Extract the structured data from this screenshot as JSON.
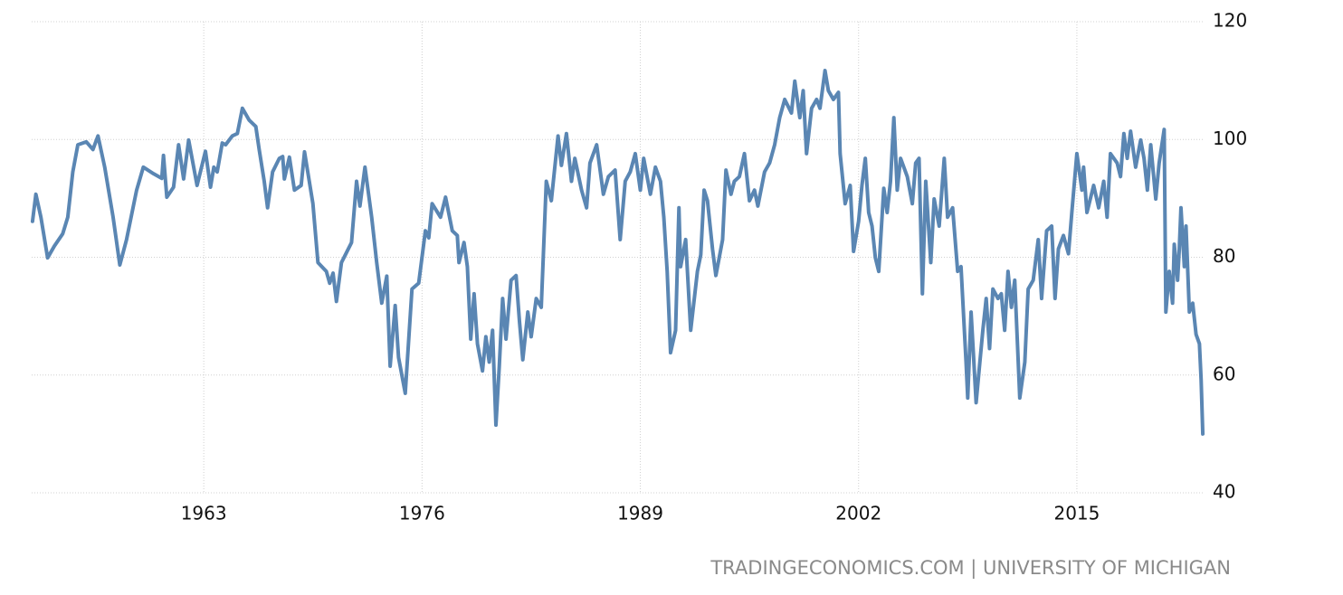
{
  "chart_data": {
    "type": "line",
    "source": "TRADINGECONOMICS.COM | UNIVERSITY OF MICHIGAN",
    "color": "#5a86b3",
    "grid": true,
    "xlim": [
      1952.75,
      2022.55
    ],
    "xticks": [
      1963,
      1976,
      1989,
      2002,
      2015
    ],
    "ylim": [
      40,
      120
    ],
    "yticks": [
      40,
      60,
      80,
      100,
      120
    ],
    "x": [
      1952.8,
      1953.0,
      1953.3,
      1953.7,
      1954.1,
      1954.6,
      1954.9,
      1955.2,
      1955.5,
      1956.0,
      1956.4,
      1956.7,
      1957.1,
      1957.6,
      1958.0,
      1958.4,
      1959.0,
      1959.4,
      1960.0,
      1960.5,
      1960.6,
      1960.8,
      1961.2,
      1961.5,
      1961.8,
      1962.1,
      1962.6,
      1963.1,
      1963.4,
      1963.6,
      1963.8,
      1964.1,
      1964.3,
      1964.7,
      1965.0,
      1965.3,
      1965.7,
      1966.1,
      1966.3,
      1966.6,
      1966.8,
      1967.1,
      1967.5,
      1967.7,
      1967.8,
      1968.1,
      1968.4,
      1968.8,
      1969.0,
      1969.5,
      1969.8,
      1970.3,
      1970.5,
      1970.7,
      1970.9,
      1971.2,
      1971.8,
      1972.1,
      1972.3,
      1972.6,
      1973.0,
      1973.3,
      1973.6,
      1973.9,
      1974.1,
      1974.4,
      1974.6,
      1975.0,
      1975.4,
      1975.8,
      1976.2,
      1976.4,
      1976.6,
      1977.1,
      1977.4,
      1977.8,
      1978.1,
      1978.2,
      1978.5,
      1978.7,
      1978.9,
      1979.1,
      1979.3,
      1979.6,
      1979.8,
      1980.0,
      1980.2,
      1980.4,
      1980.6,
      1980.8,
      1981.0,
      1981.3,
      1981.6,
      1981.8,
      1982.0,
      1982.3,
      1982.5,
      1982.8,
      1983.1,
      1983.4,
      1983.7,
      1984.1,
      1984.3,
      1984.6,
      1984.9,
      1985.1,
      1985.5,
      1985.8,
      1986.0,
      1986.4,
      1986.8,
      1987.1,
      1987.5,
      1987.8,
      1988.1,
      1988.4,
      1988.7,
      1989.0,
      1989.2,
      1989.6,
      1989.9,
      1990.2,
      1990.4,
      1990.6,
      1990.8,
      1991.1,
      1991.3,
      1991.4,
      1991.7,
      1992.0,
      1992.4,
      1992.6,
      1992.8,
      1993.0,
      1993.3,
      1993.5,
      1993.9,
      1994.1,
      1994.4,
      1994.6,
      1994.9,
      1995.2,
      1995.5,
      1995.8,
      1996.0,
      1996.4,
      1996.7,
      1997.0,
      1997.3,
      1997.6,
      1998.0,
      1998.2,
      1998.5,
      1998.7,
      1998.9,
      1999.2,
      1999.5,
      1999.7,
      2000.0,
      2000.2,
      2000.5,
      2000.8,
      2000.9,
      2001.2,
      2001.5,
      2001.7,
      2002.0,
      2002.2,
      2002.4,
      2002.6,
      2002.8,
      2003.0,
      2003.2,
      2003.5,
      2003.7,
      2003.9,
      2004.1,
      2004.3,
      2004.5,
      2004.9,
      2005.2,
      2005.4,
      2005.6,
      2005.8,
      2006.0,
      2006.3,
      2006.5,
      2006.8,
      2007.1,
      2007.3,
      2007.6,
      2007.9,
      2008.1,
      2008.4,
      2008.5,
      2008.7,
      2009.0,
      2009.2,
      2009.4,
      2009.6,
      2009.8,
      2010.0,
      2010.3,
      2010.5,
      2010.7,
      2010.9,
      2011.1,
      2011.3,
      2011.6,
      2011.9,
      2012.1,
      2012.4,
      2012.7,
      2012.9,
      2013.2,
      2013.5,
      2013.7,
      2013.9,
      2014.2,
      2014.5,
      2014.7,
      2015.0,
      2015.3,
      2015.4,
      2015.6,
      2016.0,
      2016.3,
      2016.6,
      2016.8,
      2017.0,
      2017.4,
      2017.6,
      2017.8,
      2018.0,
      2018.2,
      2018.5,
      2018.8,
      2019.0,
      2019.2,
      2019.4,
      2019.7,
      2019.9,
      2020.2,
      2020.3,
      2020.5,
      2020.7,
      2020.8,
      2021.0,
      2021.1,
      2021.2,
      2021.4,
      2021.5,
      2021.7,
      2021.9,
      2022.1,
      2022.3,
      2022.4,
      2022.5
    ],
    "values": [
      86.1,
      90.7,
      86.8,
      79.9,
      81.9,
      84,
      86.8,
      94.5,
      99.1,
      99.6,
      98.3,
      100.6,
      95.3,
      86.8,
      78.7,
      83,
      91.4,
      95.3,
      94.2,
      93.4,
      97.3,
      90.2,
      91.9,
      99.1,
      93.3,
      99.9,
      92.2,
      98,
      91.9,
      95.3,
      94.5,
      99.4,
      99.1,
      100.6,
      101,
      105.3,
      103.3,
      102.2,
      98.3,
      92.9,
      88.4,
      94.5,
      96.8,
      97.1,
      93.3,
      97,
      91.4,
      92.2,
      97.9,
      89.1,
      79.1,
      77.6,
      75.6,
      77.3,
      72.5,
      79.1,
      82.5,
      92.9,
      88.7,
      95.3,
      86.8,
      79.1,
      72.2,
      76.8,
      61.5,
      71.8,
      63,
      56.9,
      74.6,
      75.6,
      84.5,
      83.3,
      89.1,
      86.8,
      90.2,
      84.5,
      83.7,
      79.1,
      82.5,
      78.4,
      66.1,
      73.8,
      65.3,
      60.7,
      66.5,
      62.2,
      67.6,
      51.5,
      61.5,
      73,
      66.1,
      76.1,
      76.9,
      69.2,
      62.6,
      70.7,
      66.5,
      73,
      71.5,
      92.9,
      89.6,
      100.6,
      95.6,
      101,
      92.9,
      96.8,
      91.4,
      88.4,
      96,
      99.1,
      90.7,
      93.7,
      94.8,
      83,
      92.9,
      94.5,
      97.6,
      91.4,
      96.8,
      90.7,
      95.3,
      92.9,
      86.8,
      77.6,
      63.8,
      67.6,
      88.4,
      78.4,
      83,
      67.6,
      77.6,
      80.4,
      91.4,
      89.6,
      81.4,
      76.9,
      83,
      94.8,
      90.7,
      92.9,
      93.7,
      97.6,
      89.6,
      91.4,
      88.7,
      94.5,
      96,
      99.1,
      103.7,
      106.8,
      104.5,
      109.9,
      103.7,
      108.3,
      97.6,
      105.3,
      106.8,
      105.3,
      111.7,
      108.3,
      106.8,
      108,
      97.6,
      89.1,
      92.2,
      81,
      86.1,
      92.2,
      96.8,
      87.6,
      85.3,
      79.9,
      77.6,
      91.7,
      87.6,
      92.9,
      103.7,
      91.4,
      96.8,
      93.7,
      89.1,
      96,
      96.8,
      73.8,
      92.9,
      79.1,
      89.9,
      85.3,
      96.8,
      86.8,
      88.4,
      77.6,
      78.4,
      62.2,
      56.1,
      70.7,
      55.3,
      61.5,
      67.6,
      73,
      64.5,
      74.6,
      73,
      73.8,
      67.6,
      77.6,
      71.5,
      76.1,
      56.1,
      62.2,
      74.6,
      76.1,
      83,
      73,
      84.5,
      85.3,
      73,
      81.4,
      83.7,
      80.6,
      87.6,
      97.6,
      91.4,
      95.3,
      87.6,
      92.2,
      88.4,
      92.9,
      86.8,
      97.6,
      96,
      93.7,
      101,
      96.8,
      101.4,
      95.3,
      99.9,
      96.8,
      91.4,
      99.1,
      89.9,
      96,
      101.7,
      70.7,
      77.6,
      72.2,
      82.2,
      76.1,
      81.4,
      88.4,
      78.4,
      85.3,
      70.7,
      72.2,
      66.9,
      65.3,
      59.2,
      50
    ]
  }
}
